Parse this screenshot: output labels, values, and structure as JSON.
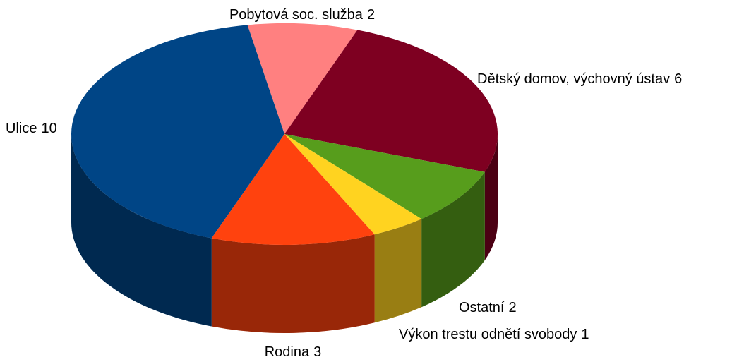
{
  "chart_data": {
    "type": "pie",
    "categories": [
      "Pobytová soc. služba",
      "Dětský domov, výchovný ústav",
      "Ostatní",
      "Výkon trestu odnětí svobody",
      "Rodina",
      "Ulice"
    ],
    "values": [
      2,
      6,
      2,
      1,
      3,
      10
    ],
    "colors": [
      "#ff8080",
      "#7e0021",
      "#579d1c",
      "#ffd320",
      "#ff420e",
      "#004586"
    ]
  }
}
